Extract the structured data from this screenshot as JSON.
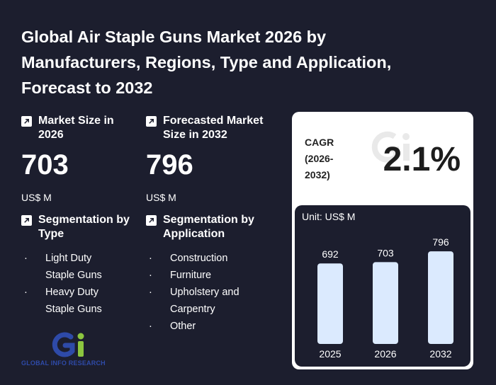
{
  "title": "Global Air Staple Guns Market 2026 by Manufacturers, Regions, Type and Application, Forecast to 2032",
  "market_size": {
    "label": "Market Size in 2026",
    "value": "703",
    "unit": "US$ M"
  },
  "forecast": {
    "label": "Forecasted Market Size in 2032",
    "value": "796",
    "unit": "US$ M"
  },
  "seg_type": {
    "label": "Segmentation by Type",
    "items": [
      "Light Duty Staple Guns",
      "Heavy Duty Staple Guns"
    ]
  },
  "seg_app": {
    "label": "Segmentation by Application",
    "items": [
      "Construction",
      "Furniture",
      "Upholstery and Carpentry",
      "Other"
    ]
  },
  "cagr": {
    "label": "CAGR (2026-2032)",
    "value": "2.1%"
  },
  "logo": {
    "text": "GLOBAL INFO RESEARCH"
  },
  "colors": {
    "background": "#1c1e2e",
    "bar": "#dbeafe",
    "logo_blue": "#2e4aa8",
    "logo_green": "#8cc63f"
  },
  "chart_data": {
    "type": "bar",
    "unit_label": "Unit: US$ M",
    "categories": [
      "2025",
      "2026",
      "2032"
    ],
    "values": [
      692,
      703,
      796
    ],
    "ylim": [
      0,
      900
    ]
  }
}
